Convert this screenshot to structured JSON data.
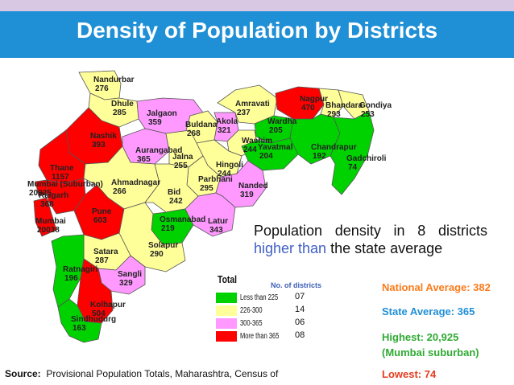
{
  "title": "Density of Population by Districts",
  "colors": {
    "less_than_225": "#00d200",
    "range_226_300": "#ffff99",
    "range_300_365": "#ff99ff",
    "more_than_365": "#ff0000",
    "header": "#1f8fd6"
  },
  "districts": [
    {
      "name": "Nandurbar",
      "density": "276"
    },
    {
      "name": "Dhule",
      "density": "285"
    },
    {
      "name": "Jalgaon",
      "density": "359"
    },
    {
      "name": "Amravati",
      "density": "237"
    },
    {
      "name": "Nagpur",
      "density": "470"
    },
    {
      "name": "Bhandara",
      "density": "293"
    },
    {
      "name": "Gondiya",
      "density": "253"
    },
    {
      "name": "Akola",
      "density": "321"
    },
    {
      "name": "Buldana",
      "density": "268"
    },
    {
      "name": "Wardha",
      "density": "205"
    },
    {
      "name": "Washim",
      "density": "244"
    },
    {
      "name": "Nashik",
      "density": "393"
    },
    {
      "name": "Aurangabad",
      "density": "365"
    },
    {
      "name": "Jalna",
      "density": "255"
    },
    {
      "name": "Yavatmal",
      "density": "204"
    },
    {
      "name": "Chandrapur",
      "density": "192"
    },
    {
      "name": "Gadchiroli",
      "density": "74"
    },
    {
      "name": "Hingoli",
      "density": "244"
    },
    {
      "name": "Thane",
      "density": "1157"
    },
    {
      "name": "Mumbai (Suburban)",
      "density": "20925"
    },
    {
      "name": "Ahmadnagar",
      "density": "266"
    },
    {
      "name": "Parbhani",
      "density": "295"
    },
    {
      "name": "Raigarh",
      "density": "368"
    },
    {
      "name": "Bid",
      "density": "242"
    },
    {
      "name": "Nanded",
      "density": "319"
    },
    {
      "name": "Pune",
      "density": "603"
    },
    {
      "name": "Mumbai",
      "density": "20038"
    },
    {
      "name": "Osmanabad",
      "density": "219"
    },
    {
      "name": "Latur",
      "density": "343"
    },
    {
      "name": "Solapur",
      "density": "290"
    },
    {
      "name": "Satara",
      "density": "287"
    },
    {
      "name": "Ratnagiri",
      "density": "196"
    },
    {
      "name": "Sangli",
      "density": "329"
    },
    {
      "name": "Kolhapur",
      "density": "504"
    },
    {
      "name": "Sindhudurg",
      "density": "163"
    }
  ],
  "note": {
    "text_before": "Population density in 8 districts ",
    "highlight": "higher than",
    "text_after": " the state average"
  },
  "legend": {
    "title": "Total",
    "subtitle": "No. of districts",
    "items": [
      {
        "label": "Less than 225",
        "count": "07"
      },
      {
        "label": "226-300",
        "count": "14"
      },
      {
        "label": "300-365",
        "count": "06"
      },
      {
        "label": "More than 365",
        "count": "08"
      }
    ]
  },
  "stats": {
    "national": "National Average: 382",
    "state": "State Average: 365",
    "highest_line1": "Highest: 20,925",
    "highest_line2": "(Mumbai suburban)",
    "lowest": "Lowest: 74"
  },
  "source": {
    "label": "Source:",
    "text": "Provisional Population Totals, Maharashtra,  Census of"
  }
}
